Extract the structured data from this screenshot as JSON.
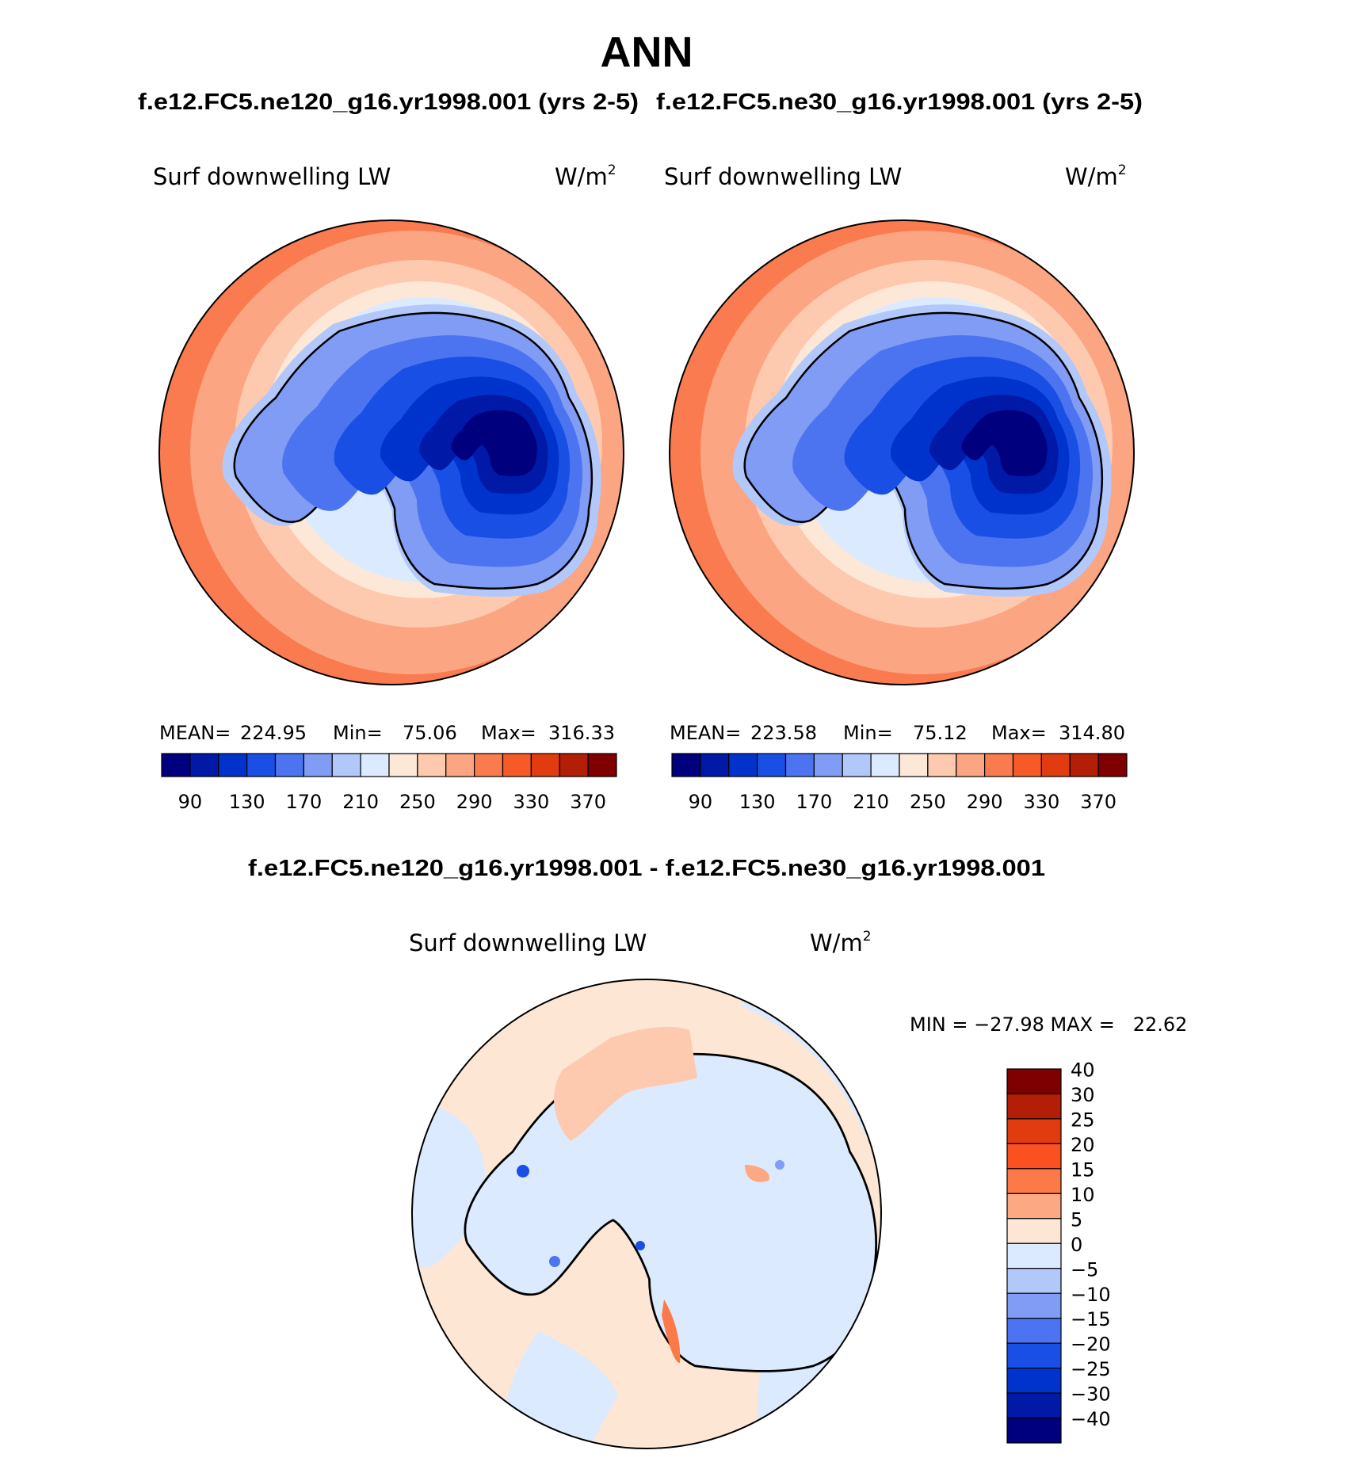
{
  "title": "ANN",
  "panels": [
    {
      "case_title": "f.e12.FC5.ne120_g16.yr1998.001 (yrs 2-5)",
      "variable": "Surf downwelling LW",
      "units": "W/m",
      "units_sup": "2",
      "stats": {
        "mean_label": "MEAN=",
        "mean": "224.95",
        "min_label": "Min=",
        "min": "75.06",
        "max_label": "Max=",
        "max": "316.33"
      },
      "colorbar_ticks": [
        "90",
        "130",
        "170",
        "210",
        "250",
        "290",
        "330",
        "370"
      ]
    },
    {
      "case_title": "f.e12.FC5.ne30_g16.yr1998.001 (yrs 2-5)",
      "variable": "Surf downwelling LW",
      "units": "W/m",
      "units_sup": "2",
      "stats": {
        "mean_label": "MEAN=",
        "mean": "223.58",
        "min_label": "Min=",
        "min": "75.12",
        "max_label": "Max=",
        "max": "314.80"
      },
      "colorbar_ticks": [
        "90",
        "130",
        "170",
        "210",
        "250",
        "290",
        "330",
        "370"
      ]
    }
  ],
  "diff": {
    "title": "f.e12.FC5.ne120_g16.yr1998.001 - f.e12.FC5.ne30_g16.yr1998.001",
    "variable": "Surf downwelling LW",
    "units": "W/m",
    "units_sup": "2",
    "minmax": "MIN = −27.98 MAX =   22.62",
    "colorbar_ticks": [
      "40",
      "30",
      "25",
      "20",
      "15",
      "10",
      "5",
      "0",
      "−5",
      "−10",
      "−15",
      "−20",
      "−25",
      "−30",
      "−40"
    ]
  },
  "colors": {
    "field_scale": [
      "#00007f",
      "#0019a6",
      "#0033cc",
      "#1a4fe6",
      "#4d74f0",
      "#809cf5",
      "#b3c8fa",
      "#dceaff",
      "#fde8d8",
      "#fdcab0",
      "#fba583",
      "#f97b4f",
      "#f55a28",
      "#e03c10",
      "#b21e06",
      "#7f0000"
    ],
    "diff_scale": [
      "#7f0000",
      "#b21e06",
      "#e03c10",
      "#fb5020",
      "#fb7a47",
      "#fca882",
      "#fde6d4",
      "#dceaff",
      "#b3c8fa",
      "#809cf5",
      "#4d74f0",
      "#1a4fe6",
      "#0033cc",
      "#0019a6",
      "#00007f"
    ]
  }
}
